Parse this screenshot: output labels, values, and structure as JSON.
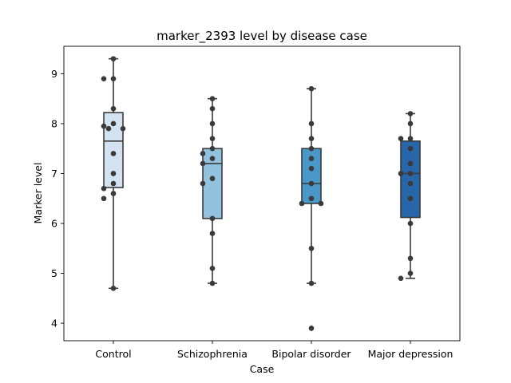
{
  "chart_data": {
    "type": "box",
    "title": "marker_2393 level by disease case",
    "xlabel": "Case",
    "ylabel": "Marker level",
    "ylim": [
      3.65,
      9.55
    ],
    "yticks": [
      4,
      5,
      6,
      7,
      8,
      9
    ],
    "grid": false,
    "legend": "none",
    "categories": [
      "Control",
      "Schizophrenia",
      "Bipolar disorder",
      "Major depression"
    ],
    "colors": [
      "#d4e3f1",
      "#93c2de",
      "#4a97c9",
      "#2767a9"
    ],
    "boxes": [
      {
        "category": "Control",
        "whisker_low": 4.7,
        "q1": 6.72,
        "median": 7.65,
        "q3": 8.22,
        "whisker_high": 9.3,
        "outliers": []
      },
      {
        "category": "Schizophrenia",
        "whisker_low": 4.8,
        "q1": 6.1,
        "median": 7.2,
        "q3": 7.5,
        "whisker_high": 8.5,
        "outliers": []
      },
      {
        "category": "Bipolar disorder",
        "whisker_low": 4.8,
        "q1": 6.4,
        "median": 6.8,
        "q3": 7.5,
        "whisker_high": 8.7,
        "outliers": [
          3.9
        ]
      },
      {
        "category": "Major depression",
        "whisker_low": 4.9,
        "q1": 6.12,
        "median": 7.0,
        "q3": 7.65,
        "whisker_high": 8.2,
        "outliers": []
      }
    ],
    "points": [
      {
        "category": "Control",
        "values": [
          9.3,
          8.9,
          8.9,
          8.3,
          8.0,
          7.95,
          7.9,
          7.9,
          7.4,
          7.0,
          6.8,
          6.7,
          6.6,
          6.5,
          4.7
        ]
      },
      {
        "category": "Schizophrenia",
        "values": [
          8.5,
          8.3,
          8.0,
          7.7,
          7.5,
          7.4,
          7.3,
          7.2,
          6.9,
          6.8,
          6.1,
          5.8,
          5.1,
          4.8
        ]
      },
      {
        "category": "Bipolar disorder",
        "values": [
          8.7,
          8.0,
          7.7,
          7.5,
          7.3,
          7.1,
          6.8,
          6.5,
          6.4,
          6.4,
          5.5,
          4.8,
          3.9
        ]
      },
      {
        "category": "Major depression",
        "values": [
          8.2,
          8.0,
          7.7,
          7.7,
          7.5,
          7.2,
          7.0,
          7.0,
          6.8,
          6.5,
          6.0,
          5.3,
          5.0,
          4.9
        ]
      }
    ]
  }
}
